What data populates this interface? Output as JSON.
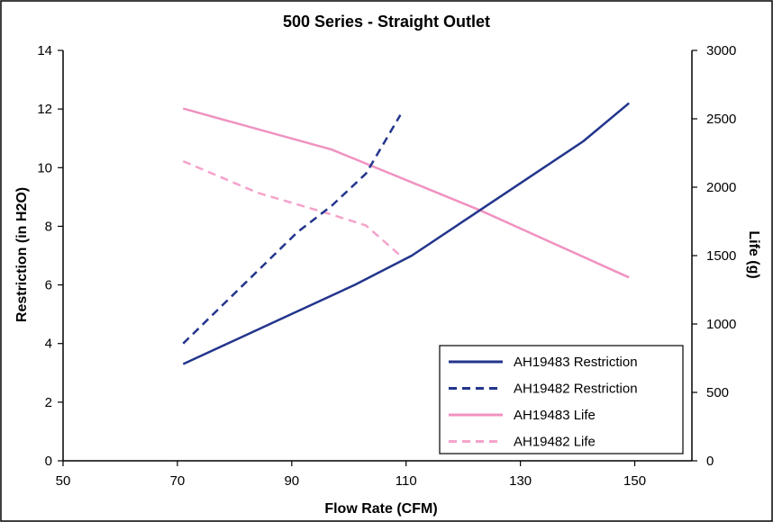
{
  "chart_data": {
    "type": "line",
    "title": "500 Series - Straight Outlet",
    "xlabel": "Flow Rate (CFM)",
    "ylabel": "Restriction (in H2O)",
    "y2label": "Life (g)",
    "xlim": [
      50,
      160
    ],
    "ylim": [
      0,
      14
    ],
    "y2lim": [
      0,
      3000
    ],
    "xticks": [
      "50",
      "70",
      "90",
      "110",
      "130",
      "150"
    ],
    "yticks": [
      "0",
      "2",
      "4",
      "6",
      "8",
      "10",
      "12",
      "14"
    ],
    "y2ticks": [
      "0",
      "500",
      "1000",
      "1500",
      "2000",
      "2500",
      "3000"
    ],
    "grid": false,
    "legend_position": "bottom-right",
    "series": [
      {
        "name": "AH19483 Restriction",
        "axis": "left",
        "style": "solid",
        "color": "#23358c",
        "points": [
          [
            71,
            3.3
          ],
          [
            81,
            4.2
          ],
          [
            91,
            5.1
          ],
          [
            101,
            6.0
          ],
          [
            111,
            7.0
          ],
          [
            121,
            8.3
          ],
          [
            131,
            9.6
          ],
          [
            141,
            10.9
          ],
          [
            149,
            12.2
          ]
        ]
      },
      {
        "name": "AH19482 Restriction",
        "axis": "left",
        "style": "dashed",
        "color": "#23358c",
        "points": [
          [
            71,
            4.0
          ],
          [
            81,
            5.9
          ],
          [
            91,
            7.8
          ],
          [
            97,
            8.7
          ],
          [
            103,
            9.8
          ],
          [
            109,
            11.8
          ]
        ]
      },
      {
        "name": "AH19483 Life",
        "axis": "right",
        "style": "solid",
        "color": "#f092c0",
        "points": [
          [
            71,
            2575
          ],
          [
            97,
            2275
          ],
          [
            123,
            1830
          ],
          [
            149,
            1340
          ]
        ]
      },
      {
        "name": "AH19482 Life",
        "axis": "right",
        "style": "dashed",
        "color": "#f5a3cb",
        "points": [
          [
            71,
            2190
          ],
          [
            84,
            1960
          ],
          [
            97,
            1800
          ],
          [
            103,
            1720
          ],
          [
            109,
            1500
          ]
        ]
      }
    ]
  }
}
